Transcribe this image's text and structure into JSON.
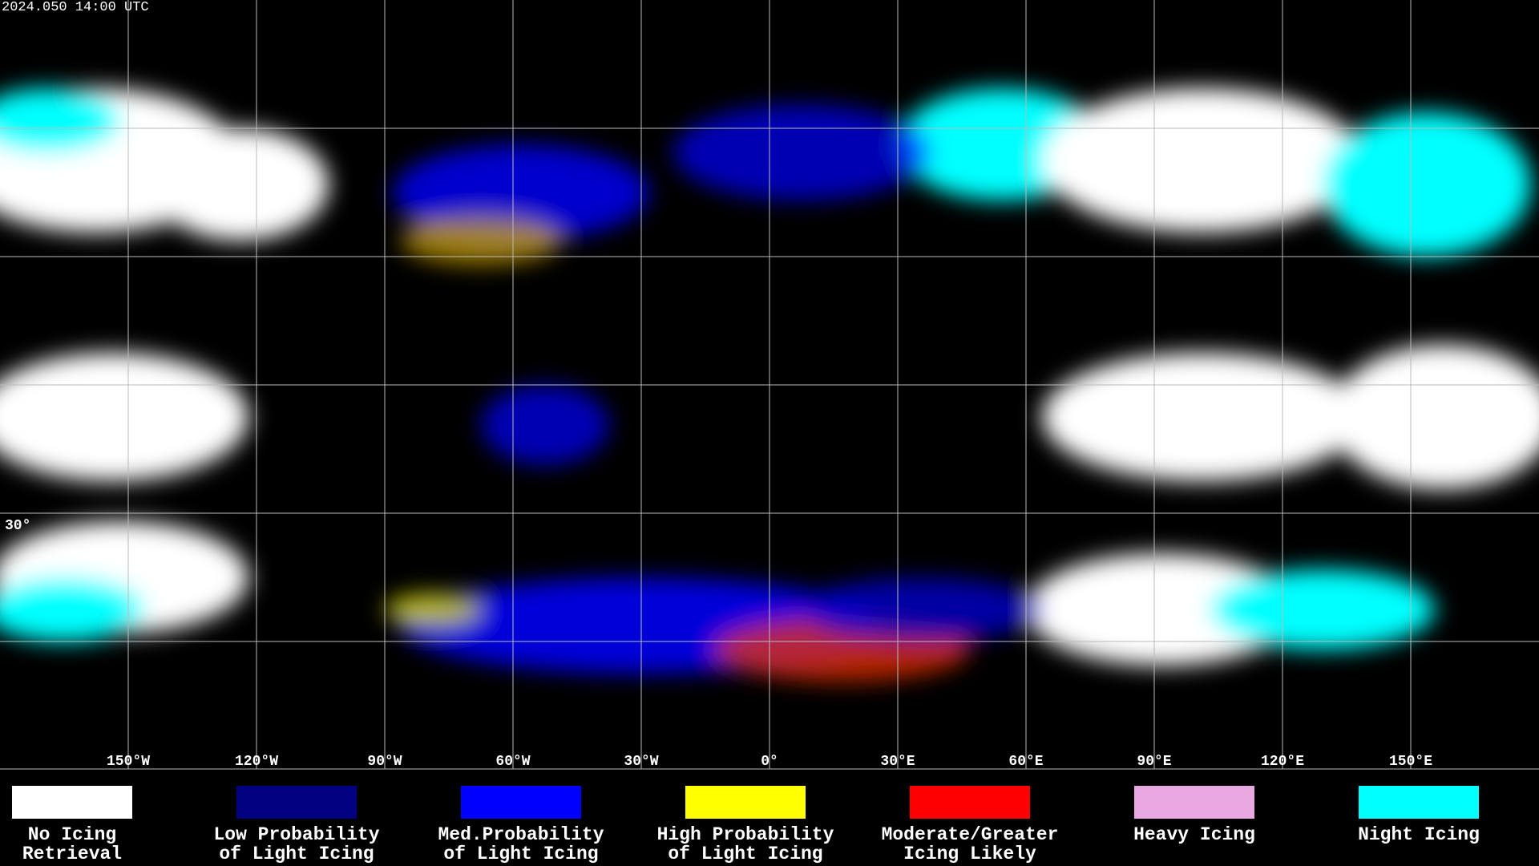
{
  "header": {
    "title": "2024.050 14:00 UTC"
  },
  "map": {
    "longitude_labels": [
      "150°W",
      "120°W",
      "90°W",
      "60°W",
      "30°W",
      "0°",
      "30°E",
      "60°E",
      "90°E",
      "120°E",
      "150°E"
    ],
    "latitude_labels": [
      "30°"
    ]
  },
  "legend": {
    "items": [
      {
        "color": "#ffffff",
        "lines": [
          "No Icing",
          "Retrieval"
        ]
      },
      {
        "color": "#000080",
        "lines": [
          "Low Probability",
          "of Light Icing"
        ]
      },
      {
        "color": "#0000ff",
        "lines": [
          "Med.Probability",
          "of Light Icing"
        ]
      },
      {
        "color": "#ffff00",
        "lines": [
          "High Probability",
          "of Light Icing"
        ]
      },
      {
        "color": "#ff0000",
        "lines": [
          "Moderate/Greater",
          "Icing Likely"
        ]
      },
      {
        "color": "#e8a8e0",
        "lines": [
          "Heavy Icing"
        ]
      },
      {
        "color": "#00ffff",
        "lines": [
          "Night Icing"
        ]
      }
    ]
  }
}
